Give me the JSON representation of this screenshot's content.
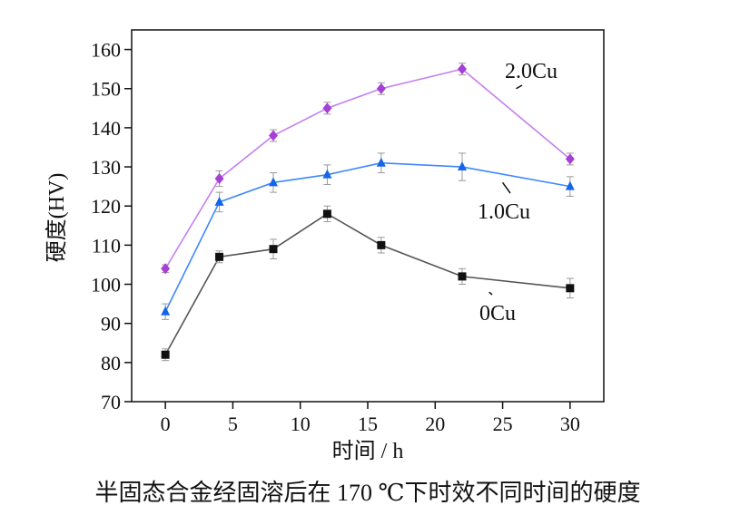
{
  "chart_data": {
    "type": "line",
    "caption": "半固态合金经固溶后在 170 ℃下时效不同时间的硬度",
    "xlabel": "时间 / h",
    "ylabel": "硬度(HV)",
    "xlim": [
      -2.5,
      32.5
    ],
    "ylim": [
      70,
      165
    ],
    "xticks": [
      0,
      5,
      10,
      15,
      20,
      25,
      30
    ],
    "yticks": [
      70,
      80,
      90,
      100,
      110,
      120,
      130,
      140,
      150,
      160
    ],
    "grid": false,
    "legend": "inline labels with leader lines",
    "series": [
      {
        "name": "2.0Cu",
        "color": "#c57ff0",
        "marker_color": "#a63fd6",
        "marker": "diamond",
        "x": [
          0,
          4,
          8,
          12,
          16,
          22,
          30
        ],
        "y": [
          104,
          127,
          138,
          145,
          150,
          155,
          132
        ],
        "err": [
          1,
          2,
          1.5,
          1.5,
          1.5,
          1.5,
          1.5
        ],
        "label_anchor": [
          26,
          150
        ]
      },
      {
        "name": "1.0Cu",
        "color": "#3f86ff",
        "marker_color": "#1565e8",
        "marker": "triangle",
        "x": [
          0,
          4,
          8,
          12,
          16,
          22,
          30
        ],
        "y": [
          93,
          121,
          126,
          128,
          131,
          130,
          125
        ],
        "err": [
          2,
          2.5,
          2.5,
          2.5,
          2.5,
          3.5,
          2.5
        ],
        "label_anchor": [
          25,
          126
        ]
      },
      {
        "name": "0Cu",
        "color": "#555555",
        "marker_color": "#111111",
        "marker": "square",
        "x": [
          0,
          4,
          8,
          12,
          16,
          22,
          30
        ],
        "y": [
          82,
          107,
          109,
          118,
          110,
          102,
          99
        ],
        "err": [
          1.5,
          1.5,
          2.5,
          2,
          2,
          2,
          2.5
        ],
        "label_anchor": [
          24,
          98
        ]
      }
    ]
  }
}
